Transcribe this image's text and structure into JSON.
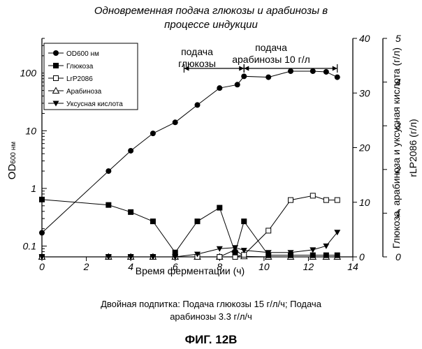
{
  "chart_data": {
    "type": "line",
    "title": [
      "Одновременная подача глюкозы и арабинозы в",
      "процессе индукции"
    ],
    "xlabel": "Время ферментации (ч)",
    "ylabel_left_main": "OD",
    "ylabel_left_sub": "600 нм",
    "ylabel_right1": "Глюкоза, арабиноза и уксусная кислота (г/л)",
    "ylabel_right2": "rLP2086 (г/л)",
    "xlim": [
      0,
      14
    ],
    "x_ticks": [
      "0",
      "2",
      "4",
      "6",
      "8",
      "10",
      "12",
      "14"
    ],
    "y_left": {
      "scale": "log",
      "lim": [
        0.065,
        400
      ],
      "ticks": [
        "0.1",
        "1",
        "10",
        "100"
      ]
    },
    "y_right1": {
      "lim": [
        0,
        40
      ],
      "ticks": [
        "0",
        "10",
        "20",
        "30",
        "40"
      ]
    },
    "y_right2": {
      "lim": [
        0,
        5
      ],
      "ticks": [
        "0",
        "1",
        "2",
        "3",
        "4",
        "5"
      ]
    },
    "legend": {
      "placement": "top-left"
    },
    "series": [
      {
        "name": "OD600 нм",
        "marker": "filled-circle",
        "axis": "left",
        "x": [
          0,
          3,
          4,
          5,
          6,
          7,
          8,
          8.8,
          9.1,
          10.2,
          11.2,
          12.2,
          12.8,
          13.3
        ],
        "y": [
          0.17,
          2.0,
          4.5,
          9,
          14,
          28,
          55,
          63,
          88,
          85,
          108,
          108,
          105,
          85
        ]
      },
      {
        "name": "Глюкоза",
        "marker": "filled-square",
        "axis": "right1",
        "x": [
          0,
          3,
          4,
          5,
          6,
          7,
          8,
          8.7,
          9.1,
          10.2,
          11.2,
          12.2,
          12.8,
          13.3
        ],
        "y": [
          10.5,
          9.5,
          8.2,
          6.5,
          0.8,
          6.5,
          9.0,
          0.8,
          6.5,
          0.3,
          0.3,
          0.3,
          0.3,
          0.3
        ]
      },
      {
        "name": "LrP2086",
        "marker": "open-square",
        "axis": "right2",
        "x": [
          0,
          3,
          4,
          5,
          6,
          7,
          8,
          8.7,
          9.1,
          10.2,
          11.2,
          12.2,
          12.8,
          13.3
        ],
        "y": [
          0,
          0,
          0,
          0,
          0,
          0,
          0,
          0,
          0.05,
          0.6,
          1.3,
          1.4,
          1.3,
          1.3
        ]
      },
      {
        "name": "Арабиноза",
        "marker": "open-triangle-up",
        "axis": "right1",
        "x": [
          0,
          3,
          4,
          5,
          6,
          7,
          8,
          8.7,
          9.1,
          10.2,
          11.2,
          12.2,
          12.8,
          13.3
        ],
        "y": [
          0,
          0,
          0,
          0,
          0,
          0,
          0,
          1.3,
          0.1,
          0,
          0,
          0,
          0,
          0
        ]
      },
      {
        "name": "Уксусная кислота",
        "marker": "filled-triangle-down",
        "axis": "right1",
        "x": [
          0,
          3,
          4,
          5,
          6,
          7,
          8,
          8.7,
          9.1,
          10.2,
          11.2,
          12.2,
          12.8,
          13.3
        ],
        "y": [
          0,
          0,
          0,
          0,
          0,
          0.5,
          1.5,
          1.7,
          1.2,
          0.8,
          0.8,
          1.3,
          2.0,
          4.5
        ]
      }
    ],
    "annotations": {
      "glucose_feed": {
        "label": [
          "подача",
          "глюкозы"
        ],
        "x_from": 6.4,
        "x_to": 9.1
      },
      "arabinose_feed": {
        "label": [
          "подача",
          "арабинозы 10 г/л"
        ],
        "x_from": 9.1,
        "x_to": 13.3
      }
    }
  },
  "caption": [
    "Двойная подпитка: Подача глюкозы 15 г/л/ч; Подача",
    "арабинозы 3.3 г/л/ч"
  ],
  "figure_label": "ФИГ. 12В"
}
